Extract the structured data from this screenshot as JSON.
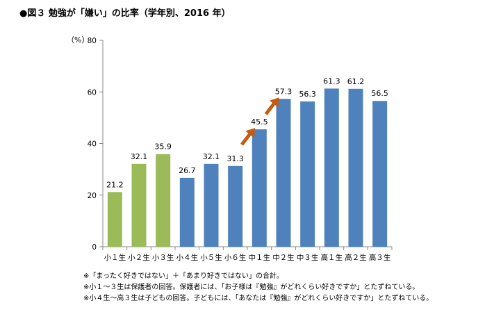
{
  "title": "●図３ 勉強が「嫌い」の比率（学年別、2016 年）",
  "chart_data": {
    "type": "bar",
    "ylabel": "（%）",
    "ylim": [
      0,
      80
    ],
    "yticks": [
      0,
      20,
      40,
      60,
      80
    ],
    "categories": [
      "小１生",
      "小２生",
      "小３生",
      "小４生",
      "小５生",
      "小６生",
      "中１生",
      "中２生",
      "中３生",
      "高１生",
      "高２生",
      "高３生"
    ],
    "values": [
      21.2,
      32.1,
      35.9,
      26.7,
      32.1,
      31.3,
      45.5,
      57.3,
      56.3,
      61.3,
      61.2,
      56.5
    ],
    "value_labels": [
      "21.2",
      "32.1",
      "35.9",
      "26.7",
      "32.1",
      "31.3",
      "45.5",
      "57.3",
      "56.3",
      "61.3",
      "61.2",
      "56.5"
    ],
    "bar_colors": [
      "#9bbb59",
      "#9bbb59",
      "#9bbb59",
      "#4f81bd",
      "#4f81bd",
      "#4f81bd",
      "#4f81bd",
      "#4f81bd",
      "#4f81bd",
      "#4f81bd",
      "#4f81bd",
      "#4f81bd"
    ],
    "arrow_color": "#c55a11",
    "arrows": [
      {
        "from_category": "小６生",
        "to_category": "中１生"
      },
      {
        "from_category": "中１生",
        "to_category": "中２生"
      }
    ],
    "grid": false
  },
  "notes": [
    "※「まったく好きではない」＋「あまり好きではない」の合計。",
    "※小１～３生は保護者の回答。保護者には、「お子様は『勉強』がどれくらい好きですか」とたずねている。",
    "※小４生～高３生は子どもの回答。子どもには、「あなたは『勉強』がどれくらい好きですか」とたずねている。"
  ]
}
